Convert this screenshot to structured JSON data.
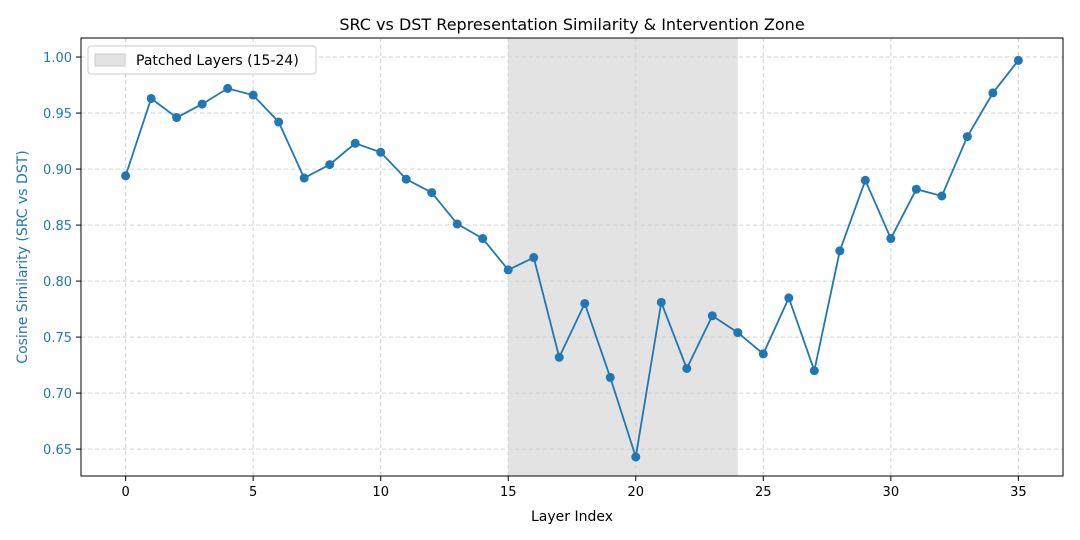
{
  "chart_data": {
    "type": "line",
    "title": "SRC vs DST Representation Similarity & Intervention Zone",
    "xlabel": "Layer Index",
    "ylabel": "Cosine Similarity (SRC vs DST)",
    "xlim": [
      -1.75,
      36.75
    ],
    "ylim": [
      0.626,
      1.017
    ],
    "xticks": [
      0,
      5,
      10,
      15,
      20,
      25,
      30,
      35
    ],
    "yticks": [
      0.65,
      0.7,
      0.75,
      0.8,
      0.85,
      0.9,
      0.95,
      1.0
    ],
    "ytick_labels": [
      "0.65",
      "0.70",
      "0.75",
      "0.80",
      "0.85",
      "0.90",
      "0.95",
      "1.00"
    ],
    "grid": true,
    "legend": {
      "placement": "top-left",
      "entries": [
        "Patched Layers (15-24)"
      ]
    },
    "shaded_region": {
      "x_start": 15,
      "x_end": 24,
      "label": "Patched Layers (15-24)",
      "color": "#e3e3e3"
    },
    "series": [
      {
        "color": "#1f77b4",
        "x": [
          0,
          1,
          2,
          3,
          4,
          5,
          6,
          7,
          8,
          9,
          10,
          11,
          12,
          13,
          14,
          15,
          16,
          17,
          18,
          19,
          20,
          21,
          22,
          23,
          24,
          25,
          26,
          27,
          28,
          29,
          30,
          31,
          32,
          33,
          34,
          35
        ],
        "values": [
          0.894,
          0.963,
          0.946,
          0.958,
          0.972,
          0.966,
          0.942,
          0.892,
          0.904,
          0.923,
          0.915,
          0.891,
          0.879,
          0.851,
          0.838,
          0.81,
          0.821,
          0.732,
          0.78,
          0.714,
          0.643,
          0.781,
          0.722,
          0.769,
          0.754,
          0.735,
          0.785,
          0.72,
          0.827,
          0.89,
          0.838,
          0.882,
          0.876,
          0.929,
          0.968,
          0.997
        ]
      }
    ],
    "ylabel_color": "#1f77b4"
  }
}
